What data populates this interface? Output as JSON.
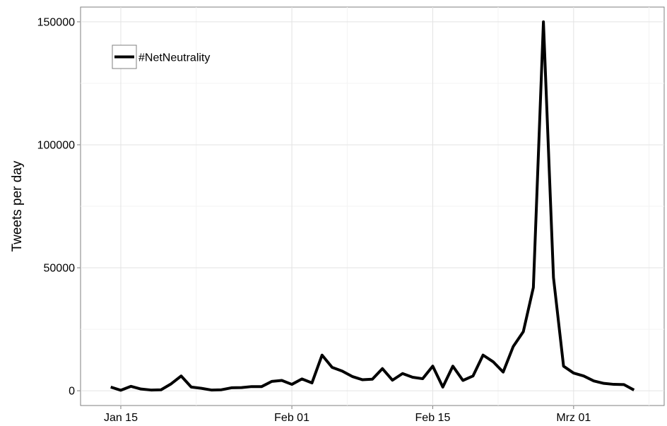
{
  "chart_data": {
    "type": "line",
    "title": "",
    "xlabel": "",
    "ylabel": "Tweets per day",
    "x_ticks": [
      {
        "date": "2015-01-15",
        "label": "Jan 15"
      },
      {
        "date": "2015-02-01",
        "label": "Feb 01"
      },
      {
        "date": "2015-02-15",
        "label": "Feb 15"
      },
      {
        "date": "2015-03-01",
        "label": "Mrz 01"
      }
    ],
    "y_ticks": [
      0,
      50000,
      100000,
      150000
    ],
    "xlim": [
      "2015-01-11",
      "2015-03-10"
    ],
    "ylim": [
      -6000,
      156000
    ],
    "grid": true,
    "legend": {
      "position": "top-left"
    },
    "series": [
      {
        "name": "#NetNeutrality",
        "color": "#000000",
        "x": [
          "2015-01-14",
          "2015-01-15",
          "2015-01-16",
          "2015-01-17",
          "2015-01-18",
          "2015-01-19",
          "2015-01-20",
          "2015-01-21",
          "2015-01-22",
          "2015-01-23",
          "2015-01-24",
          "2015-01-25",
          "2015-01-26",
          "2015-01-27",
          "2015-01-28",
          "2015-01-29",
          "2015-01-30",
          "2015-01-31",
          "2015-02-01",
          "2015-02-02",
          "2015-02-03",
          "2015-02-04",
          "2015-02-05",
          "2015-02-06",
          "2015-02-07",
          "2015-02-08",
          "2015-02-09",
          "2015-02-10",
          "2015-02-11",
          "2015-02-12",
          "2015-02-13",
          "2015-02-14",
          "2015-02-15",
          "2015-02-16",
          "2015-02-17",
          "2015-02-18",
          "2015-02-19",
          "2015-02-20",
          "2015-02-21",
          "2015-02-22",
          "2015-02-23",
          "2015-02-24",
          "2015-02-25",
          "2015-02-26",
          "2015-02-27",
          "2015-02-28",
          "2015-03-01",
          "2015-03-02",
          "2015-03-03",
          "2015-03-04",
          "2015-03-05",
          "2015-03-06",
          "2015-03-07"
        ],
        "values": [
          1500,
          200,
          1800,
          700,
          300,
          400,
          2800,
          6000,
          1500,
          1000,
          300,
          400,
          1200,
          1300,
          1700,
          1700,
          3800,
          4200,
          2600,
          4800,
          3200,
          14500,
          9500,
          8000,
          5800,
          4500,
          4700,
          9000,
          4300,
          7000,
          5500,
          4900,
          10000,
          1500,
          10000,
          4200,
          6000,
          14500,
          11800,
          7600,
          18000,
          24000,
          42000,
          150000,
          46000,
          10000,
          7200,
          6000,
          4000,
          3000,
          2600,
          2500,
          300
        ]
      }
    ]
  }
}
